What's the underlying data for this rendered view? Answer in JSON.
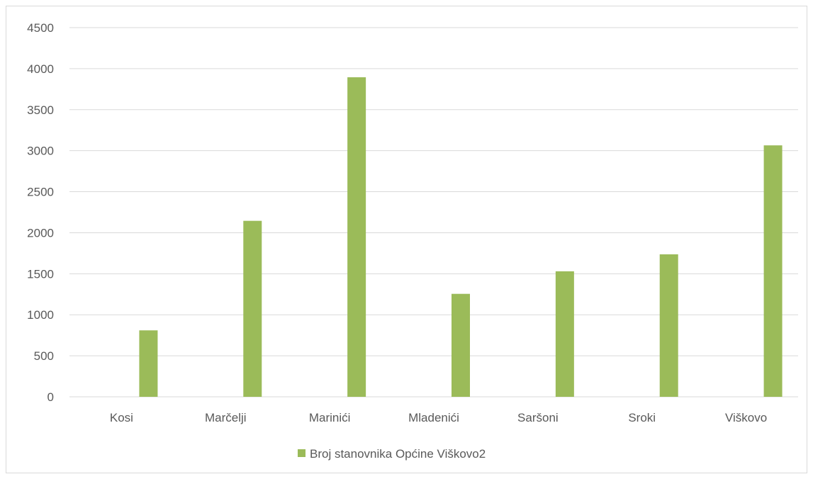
{
  "chart_data": {
    "type": "bar",
    "categories": [
      "Kosi",
      "Marčelji",
      "Marinići",
      "Mladenići",
      "Saršoni",
      "Sroki",
      "Viškovo"
    ],
    "series": [
      {
        "name": "Broj stanovnika Općine Viškovo2",
        "values": [
          810,
          2145,
          3895,
          1255,
          1530,
          1737,
          3065
        ],
        "color": "#9bbb59"
      }
    ],
    "ylim": [
      0,
      4500
    ],
    "yticks": [
      0,
      500,
      1000,
      1500,
      2000,
      2500,
      3000,
      3500,
      4000,
      4500
    ],
    "grid": true,
    "legend_position": "bottom",
    "gridline_color": "#d9d9d9",
    "text_color": "#595959"
  }
}
